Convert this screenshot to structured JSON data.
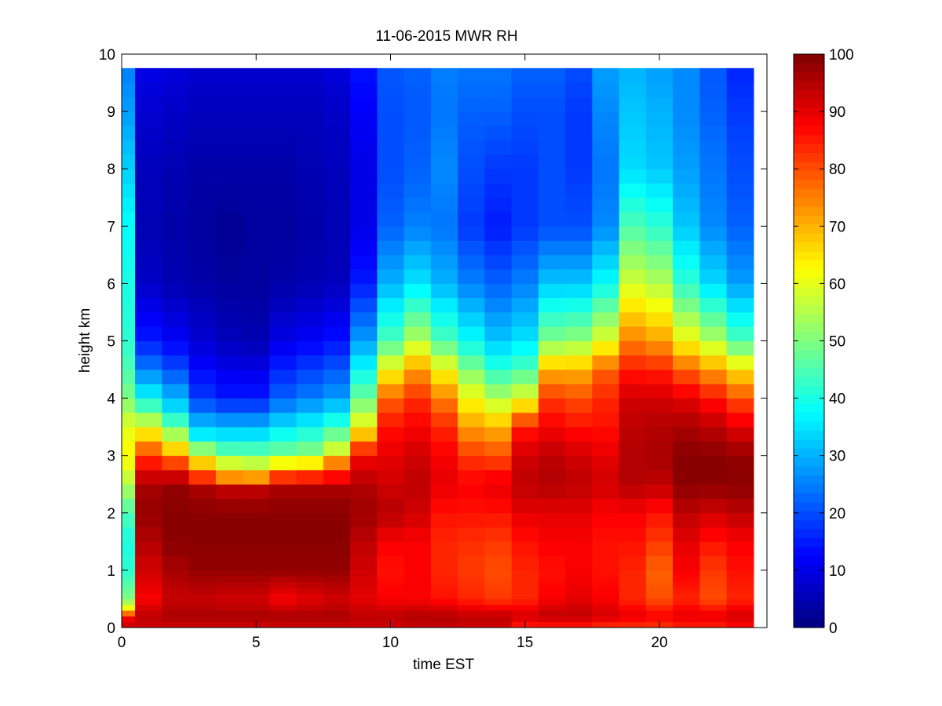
{
  "chart_data": {
    "type": "heatmap",
    "title": "11-06-2015 MWR RH",
    "xlabel": "time EST",
    "ylabel": "height km",
    "xlim": [
      0,
      24
    ],
    "ylim": [
      0,
      10
    ],
    "xticks": [
      0,
      5,
      10,
      15,
      20
    ],
    "yticks": [
      0,
      1,
      2,
      3,
      4,
      5,
      6,
      7,
      8,
      9,
      10
    ],
    "colorbar": {
      "colormap": "jet",
      "range": [
        0,
        100
      ],
      "ticks": [
        0,
        10,
        20,
        30,
        40,
        50,
        60,
        70,
        80,
        90,
        100
      ]
    },
    "x_hours": [
      0,
      1,
      2,
      3,
      4,
      5,
      6,
      7,
      8,
      9,
      10,
      11,
      12,
      13,
      14,
      15,
      16,
      17,
      18,
      19,
      20,
      21,
      22,
      23
    ],
    "height_levels_km": [
      0.0,
      0.1,
      0.2,
      0.3,
      0.4,
      0.5,
      0.6,
      0.7,
      0.8,
      0.9,
      1.0,
      1.25,
      1.5,
      1.75,
      2.0,
      2.25,
      2.5,
      2.75,
      3.0,
      3.25,
      3.5,
      3.75,
      4.0,
      4.25,
      4.5,
      4.75,
      5.0,
      5.25,
      5.5,
      5.75,
      6.0,
      6.25,
      6.5,
      6.75,
      7.0,
      7.25,
      7.5,
      7.75,
      8.0,
      8.25,
      8.5,
      8.75,
      9.0,
      9.25,
      9.5,
      9.75
    ],
    "rh_profiles": [
      {
        "hour": 0,
        "heights_km": [
          0,
          0.2,
          0.3,
          0.5,
          1,
          1.5,
          2,
          2.5,
          3,
          3.5,
          4,
          4.5,
          5,
          6,
          7,
          8,
          9,
          9.75
        ],
        "rh": [
          93,
          88,
          65,
          50,
          42,
          40,
          45,
          55,
          63,
          60,
          50,
          45,
          42,
          40,
          38,
          33,
          28,
          25
        ]
      },
      {
        "hour": 1,
        "heights_km": [
          0,
          0.2,
          0.5,
          1,
          1.5,
          2,
          2.5,
          3,
          3.5,
          4,
          4.5,
          5,
          6,
          7,
          8,
          9,
          9.75
        ],
        "rh": [
          92,
          94,
          88,
          92,
          95,
          98,
          96,
          82,
          60,
          38,
          25,
          15,
          7,
          5,
          6,
          8,
          10
        ]
      },
      {
        "hour": 2,
        "heights_km": [
          0,
          0.2,
          0.5,
          1,
          1.5,
          2,
          2.5,
          2.8,
          3.2,
          3.8,
          4.5,
          5,
          6,
          7,
          8,
          9,
          9.75
        ],
        "rh": [
          92,
          96,
          93,
          96,
          99,
          99,
          98,
          85,
          62,
          35,
          20,
          12,
          5,
          4,
          5,
          7,
          9
        ]
      },
      {
        "hour": 3,
        "heights_km": [
          0,
          0.2,
          0.5,
          1,
          1.5,
          2,
          2.4,
          2.7,
          3.0,
          3.3,
          4,
          5,
          6,
          7,
          8,
          9,
          9.75
        ],
        "rh": [
          92,
          96,
          93,
          98,
          99,
          99,
          96,
          78,
          60,
          38,
          18,
          8,
          4,
          3,
          4,
          6,
          8
        ]
      },
      {
        "hour": 4,
        "heights_km": [
          0,
          0.2,
          0.5,
          1,
          1.5,
          2,
          2.4,
          2.6,
          2.8,
          3.2,
          4,
          5,
          6,
          7,
          8,
          9,
          9.75
        ],
        "rh": [
          92,
          96,
          92,
          98,
          99,
          99,
          94,
          75,
          62,
          40,
          15,
          6,
          3,
          2,
          4,
          6,
          8
        ]
      },
      {
        "hour": 5,
        "heights_km": [
          0,
          0.2,
          0.5,
          1,
          1.5,
          2,
          2.4,
          2.6,
          2.8,
          3.2,
          4,
          5,
          6,
          7,
          8,
          9,
          9.75
        ],
        "rh": [
          92,
          96,
          92,
          98,
          99,
          99,
          94,
          74,
          60,
          40,
          15,
          5,
          3,
          3,
          4,
          6,
          8
        ]
      },
      {
        "hour": 6,
        "heights_km": [
          0,
          0.2,
          0.5,
          1,
          1.5,
          2,
          2.4,
          2.7,
          3.0,
          3.5,
          4,
          5,
          6,
          7,
          8,
          9,
          9.75
        ],
        "rh": [
          92,
          96,
          88,
          98,
          99,
          99,
          96,
          78,
          50,
          35,
          22,
          10,
          4,
          3,
          4,
          6,
          8
        ]
      },
      {
        "hour": 7,
        "heights_km": [
          0,
          0.2,
          0.5,
          1,
          1.5,
          2,
          2.4,
          2.7,
          3.0,
          3.5,
          4,
          5,
          6,
          7,
          8,
          9,
          9.75
        ],
        "rh": [
          92,
          96,
          90,
          98,
          99,
          99,
          96,
          80,
          52,
          38,
          25,
          12,
          5,
          4,
          5,
          6,
          8
        ]
      },
      {
        "hour": 8,
        "heights_km": [
          0,
          0.2,
          0.5,
          1,
          1.5,
          2,
          2.4,
          2.8,
          3.1,
          3.6,
          4,
          5,
          6,
          7,
          8,
          9,
          9.75
        ],
        "rh": [
          92,
          96,
          92,
          98,
          99,
          99,
          96,
          80,
          58,
          40,
          28,
          14,
          6,
          5,
          6,
          7,
          9
        ]
      },
      {
        "hour": 9,
        "heights_km": [
          0,
          0.2,
          0.5,
          1,
          1.5,
          2,
          2.5,
          3,
          3.5,
          4,
          4.5,
          5,
          6,
          7,
          8,
          9,
          9.75
        ],
        "rh": [
          92,
          94,
          90,
          92,
          94,
          97,
          95,
          88,
          62,
          48,
          38,
          28,
          15,
          10,
          10,
          12,
          14
        ]
      },
      {
        "hour": 10,
        "heights_km": [
          0,
          0.2,
          0.5,
          1,
          1.5,
          2,
          2.5,
          3,
          3.5,
          4,
          4.5,
          5,
          6,
          7,
          8,
          9,
          9.75
        ],
        "rh": [
          92,
          94,
          88,
          86,
          88,
          95,
          92,
          90,
          86,
          78,
          62,
          45,
          30,
          22,
          20,
          20,
          21
        ]
      },
      {
        "hour": 11,
        "heights_km": [
          0,
          0.2,
          0.5,
          1,
          1.5,
          2,
          2.5,
          3,
          3.5,
          4,
          4.5,
          5,
          6,
          7,
          8,
          9,
          9.75
        ],
        "rh": [
          93,
          95,
          88,
          88,
          88,
          92,
          94,
          92,
          88,
          83,
          72,
          55,
          35,
          25,
          22,
          21,
          22
        ]
      },
      {
        "hour": 12,
        "heights_km": [
          0,
          0.2,
          0.5,
          1,
          1.5,
          2,
          2.5,
          3,
          3.5,
          4,
          4.5,
          5,
          6,
          7,
          8,
          9,
          9.75
        ],
        "rh": [
          93,
          95,
          86,
          84,
          84,
          86,
          90,
          88,
          84,
          75,
          62,
          45,
          30,
          24,
          26,
          24,
          25
        ]
      },
      {
        "hour": 13,
        "heights_km": [
          0,
          0.2,
          0.5,
          1,
          1.5,
          2,
          2.5,
          3,
          3.5,
          4,
          4.5,
          5,
          6,
          7,
          8,
          9,
          9.75
        ],
        "rh": [
          92,
          94,
          84,
          82,
          83,
          86,
          88,
          82,
          72,
          62,
          50,
          38,
          25,
          18,
          20,
          22,
          24
        ]
      },
      {
        "hour": 14,
        "heights_km": [
          0,
          0.2,
          0.5,
          1,
          1.5,
          2,
          2.5,
          3,
          3.5,
          4,
          4.5,
          5,
          6,
          7,
          8,
          9,
          9.75
        ],
        "rh": [
          92,
          94,
          82,
          80,
          82,
          86,
          90,
          80,
          70,
          55,
          42,
          32,
          22,
          15,
          18,
          22,
          24
        ]
      },
      {
        "hour": 15,
        "heights_km": [
          0,
          0.2,
          0.5,
          1,
          1.5,
          2,
          2.5,
          3,
          3.5,
          4,
          4.5,
          5,
          6,
          7,
          8,
          9,
          9.75
        ],
        "rh": [
          84,
          92,
          84,
          84,
          86,
          90,
          94,
          92,
          85,
          60,
          45,
          35,
          25,
          18,
          18,
          20,
          22
        ]
      },
      {
        "hour": 16,
        "heights_km": [
          0,
          0.2,
          0.5,
          1,
          1.5,
          2,
          2.5,
          3,
          3.5,
          4,
          4.5,
          5,
          6,
          7,
          8,
          9,
          9.75
        ],
        "rh": [
          84,
          94,
          88,
          86,
          88,
          90,
          95,
          94,
          88,
          82,
          70,
          50,
          32,
          20,
          20,
          20,
          22
        ]
      },
      {
        "hour": 17,
        "heights_km": [
          0,
          0.2,
          0.5,
          1,
          1.5,
          2,
          2.5,
          3,
          3.5,
          4,
          4.5,
          5,
          6,
          7,
          8,
          9,
          9.75
        ],
        "rh": [
          84,
          94,
          90,
          88,
          88,
          90,
          94,
          92,
          86,
          80,
          70,
          52,
          32,
          20,
          18,
          18,
          20
        ]
      },
      {
        "hour": 18,
        "heights_km": [
          0,
          0.2,
          0.5,
          1,
          1.5,
          2,
          2.5,
          3,
          3.5,
          4,
          4.5,
          5,
          6,
          7,
          8,
          9,
          9.75
        ],
        "rh": [
          82,
          92,
          88,
          86,
          86,
          88,
          92,
          90,
          86,
          84,
          78,
          60,
          38,
          26,
          24,
          26,
          28
        ]
      },
      {
        "hour": 19,
        "heights_km": [
          0,
          0.2,
          0.5,
          1,
          1.5,
          2,
          2.5,
          3,
          3.5,
          4,
          4.5,
          5,
          6,
          7,
          8,
          9,
          9.75
        ],
        "rh": [
          82,
          90,
          84,
          84,
          86,
          88,
          95,
          95,
          94,
          92,
          85,
          75,
          58,
          45,
          34,
          32,
          30
        ]
      },
      {
        "hour": 20,
        "heights_km": [
          0,
          0.2,
          0.5,
          1,
          1.5,
          2,
          2.5,
          3,
          3.5,
          4,
          4.5,
          5,
          6,
          7,
          8,
          9,
          9.75
        ],
        "rh": [
          82,
          88,
          80,
          78,
          82,
          86,
          94,
          96,
          95,
          92,
          84,
          72,
          55,
          42,
          32,
          30,
          28
        ]
      },
      {
        "hour": 21,
        "heights_km": [
          0,
          0.2,
          0.5,
          1,
          1.5,
          2,
          2.5,
          3,
          3.5,
          4,
          4.5,
          5,
          6,
          7,
          8,
          9,
          9.75
        ],
        "rh": [
          84,
          90,
          84,
          88,
          90,
          94,
          99,
          99,
          96,
          90,
          78,
          62,
          42,
          32,
          28,
          26,
          26
        ]
      },
      {
        "hour": 22,
        "heights_km": [
          0,
          0.2,
          0.5,
          1,
          1.5,
          2,
          2.5,
          3,
          3.5,
          4,
          4.5,
          5,
          6,
          7,
          8,
          9,
          9.75
        ],
        "rh": [
          84,
          90,
          80,
          82,
          86,
          92,
          99,
          99,
          94,
          86,
          72,
          55,
          34,
          26,
          24,
          22,
          21
        ]
      },
      {
        "hour": 23,
        "heights_km": [
          0,
          0.2,
          0.5,
          1,
          1.5,
          2,
          2.5,
          3,
          3.5,
          4,
          4.5,
          5,
          6,
          7,
          8,
          9,
          9.75
        ],
        "rh": [
          86,
          92,
          84,
          86,
          88,
          94,
          99,
          98,
          90,
          80,
          65,
          45,
          28,
          22,
          20,
          18,
          16
        ]
      }
    ]
  }
}
